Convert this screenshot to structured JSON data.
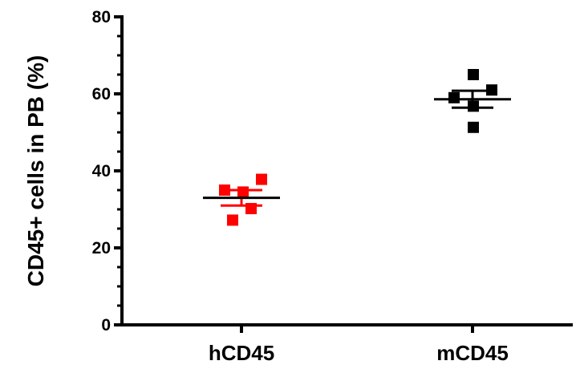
{
  "chart_data": {
    "type": "scatter",
    "chart_style": "dot-plot with mean and SEM bars",
    "title": "",
    "xlabel": "",
    "ylabel": "CD45+ cells in PB (%)",
    "ylim": [
      0,
      80
    ],
    "yticks": [
      0,
      20,
      40,
      60,
      80
    ],
    "categories": [
      "hCD45",
      "mCD45"
    ],
    "grid": false,
    "legend": "none",
    "series": [
      {
        "category": "hCD45",
        "color": "#ff0000",
        "marker": "square",
        "values": [
          35,
          34.5,
          37.8,
          30.2,
          27.2
        ],
        "mean": 33,
        "sem_upper": 35,
        "sem_lower": 31
      },
      {
        "category": "mCD45",
        "color": "#000000",
        "marker": "square",
        "values": [
          59,
          65,
          61,
          56.8,
          51.3
        ],
        "mean": 58.6,
        "sem_upper": 60.8,
        "sem_lower": 56.4
      }
    ],
    "axis_color": "#000000",
    "mean_line_color": "#000000"
  }
}
